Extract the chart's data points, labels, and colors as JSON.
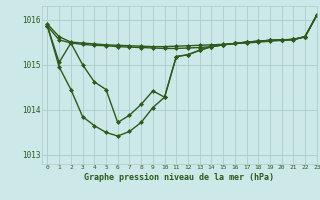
{
  "xlabel": "Graphe pression niveau de la mer (hPa)",
  "xlim": [
    -0.5,
    23
  ],
  "ylim": [
    1012.8,
    1016.3
  ],
  "yticks": [
    1013,
    1014,
    1015,
    1016
  ],
  "xticks": [
    0,
    1,
    2,
    3,
    4,
    5,
    6,
    7,
    8,
    9,
    10,
    11,
    12,
    13,
    14,
    15,
    16,
    17,
    18,
    19,
    20,
    21,
    22,
    23
  ],
  "bg_color": "#cce8e8",
  "grid_color": "#aacccc",
  "line_color": "#2d5a1b",
  "font_color": "#2d5a1b",
  "line_width": 1.0,
  "marker": "D",
  "marker_size": 2.0,
  "curves": [
    [
      1015.9,
      1015.62,
      1015.5,
      1015.48,
      1015.46,
      1015.44,
      1015.43,
      1015.42,
      1015.41,
      1015.4,
      1015.4,
      1015.41,
      1015.42,
      1015.43,
      1015.44,
      1015.45,
      1015.47,
      1015.48,
      1015.5,
      1015.52,
      1015.54,
      1015.55,
      1015.62,
      1016.1
    ],
    [
      1015.85,
      1014.95,
      1014.45,
      1013.85,
      1013.65,
      1013.5,
      1013.42,
      1013.52,
      1013.72,
      1014.05,
      1014.28,
      1015.18,
      1015.22,
      1015.32,
      1015.4,
      1015.44,
      1015.47,
      1015.5,
      1015.52,
      1015.54,
      1015.55,
      1015.56,
      1015.62,
      1016.1
    ],
    [
      1015.85,
      1015.05,
      1015.48,
      1015.0,
      1014.62,
      1014.45,
      1013.72,
      1013.88,
      1014.12,
      1014.42,
      1014.28,
      1015.18,
      1015.22,
      1015.32,
      1015.4,
      1015.44,
      1015.47,
      1015.5,
      1015.52,
      1015.54,
      1015.55,
      1015.56,
      1015.62,
      1016.1
    ],
    [
      1015.85,
      1015.55,
      1015.48,
      1015.45,
      1015.43,
      1015.42,
      1015.4,
      1015.39,
      1015.38,
      1015.37,
      1015.36,
      1015.36,
      1015.37,
      1015.38,
      1015.4,
      1015.44,
      1015.47,
      1015.5,
      1015.52,
      1015.54,
      1015.55,
      1015.56,
      1015.62,
      1016.1
    ]
  ]
}
